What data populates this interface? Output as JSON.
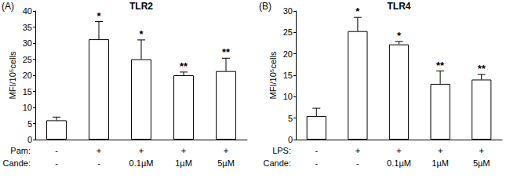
{
  "chart_data": [
    {
      "type": "bar",
      "panel": "(A)",
      "title": "TLR2",
      "y_label": "MFI/10⁵cells",
      "category_rows": [
        "Pam:",
        "Cande:"
      ],
      "categories": [
        [
          "-",
          "-"
        ],
        [
          "+",
          "-"
        ],
        [
          "+",
          "0.1µM"
        ],
        [
          "+",
          "1µM"
        ],
        [
          "+",
          "5µM"
        ]
      ],
      "values": [
        6,
        31.2,
        25,
        20,
        21.3
      ],
      "errors": [
        1,
        5.5,
        6,
        1,
        4
      ],
      "annotations": [
        "",
        "*",
        "*",
        "**",
        "**"
      ],
      "color": "#ffffff",
      "ylim": [
        0,
        40
      ],
      "yticks": [
        0,
        5,
        10,
        15,
        20,
        25,
        30,
        35,
        40
      ],
      "grid": false
    },
    {
      "type": "bar",
      "panel": "(B)",
      "title": "TLR4",
      "y_label": "MFI/10⁵cells",
      "category_rows": [
        "LPS:",
        "Cande:"
      ],
      "categories": [
        [
          "-",
          "-"
        ],
        [
          "+",
          "-"
        ],
        [
          "+",
          "0.1µM"
        ],
        [
          "+",
          "1µM"
        ],
        [
          "+",
          "5µM"
        ]
      ],
      "values": [
        5.5,
        25.3,
        22.2,
        13,
        14
      ],
      "errors": [
        1.8,
        3.2,
        0.7,
        3,
        1.2
      ],
      "annotations": [
        "",
        "*",
        "*",
        "**",
        "**"
      ],
      "color": "#ffffff",
      "ylim": [
        0,
        30
      ],
      "yticks": [
        0,
        5,
        10,
        15,
        20,
        25,
        30
      ],
      "grid": false
    }
  ]
}
